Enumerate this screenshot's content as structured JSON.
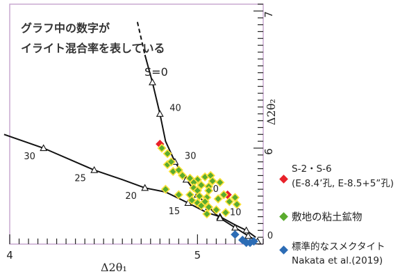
{
  "chart_data": {
    "type": "scatter",
    "note_text": [
      "グラフ中の数字が",
      "イライト混合率を表している"
    ],
    "xlabel": "Δ2θ₁",
    "ylabel": "Δ2θ₂",
    "xlim": [
      4.0,
      5.35
    ],
    "ylim": [
      5.3,
      7.05
    ],
    "x_ticks": [
      {
        "value": 4,
        "label": "4"
      },
      {
        "value": 5,
        "label": "5"
      }
    ],
    "y_ticks": [
      {
        "value": 6,
        "label": "6"
      },
      {
        "value": 7,
        "label": "7"
      }
    ],
    "grid": false,
    "curves": [
      {
        "name": "curve-left",
        "points": [
          [
            3.97,
            6.1
          ],
          [
            4.18,
            6.0
          ],
          [
            4.45,
            5.84
          ],
          [
            4.6,
            5.77
          ],
          [
            4.72,
            5.71
          ],
          [
            4.83,
            5.68
          ],
          [
            4.95,
            5.6
          ],
          [
            5.05,
            5.53
          ],
          [
            5.12,
            5.5
          ],
          [
            5.2,
            5.44
          ],
          [
            5.26,
            5.4
          ],
          [
            5.31,
            5.35
          ]
        ],
        "markers": [
          {
            "x": 4.18,
            "y": 6.0,
            "label": "30"
          },
          {
            "x": 4.45,
            "y": 5.84,
            "label": "25"
          },
          {
            "x": 4.72,
            "y": 5.71,
            "label": "20"
          },
          {
            "x": 4.95,
            "y": 5.6,
            "label": "15"
          },
          {
            "x": 5.12,
            "y": 5.5,
            "label": ""
          },
          {
            "x": 5.26,
            "y": 5.4,
            "label": ""
          }
        ]
      },
      {
        "name": "curve-s0",
        "points": [
          [
            4.72,
            6.68
          ],
          [
            4.76,
            6.48
          ],
          [
            4.8,
            6.25
          ],
          [
            4.83,
            6.05
          ],
          [
            4.88,
            5.9
          ],
          [
            4.94,
            5.77
          ],
          [
            5.0,
            5.66
          ],
          [
            5.06,
            5.57
          ],
          [
            5.12,
            5.49
          ],
          [
            5.2,
            5.42
          ],
          [
            5.27,
            5.36
          ],
          [
            5.32,
            5.32
          ]
        ],
        "dashed_top": [
          [
            4.68,
            6.92
          ],
          [
            4.72,
            6.68
          ]
        ],
        "markers": [
          {
            "x": 4.76,
            "y": 6.48,
            "label": ""
          },
          {
            "x": 4.8,
            "y": 6.25,
            "label": "40"
          },
          {
            "x": 4.88,
            "y": 5.9,
            "label": "30"
          },
          {
            "x": 4.94,
            "y": 5.77,
            "label": ""
          },
          {
            "x": 5.0,
            "y": 5.66,
            "label": "20"
          },
          {
            "x": 5.06,
            "y": 5.57,
            "label": ""
          },
          {
            "x": 5.12,
            "y": 5.49,
            "label": "10"
          },
          {
            "x": 5.2,
            "y": 5.42,
            "label": ""
          },
          {
            "x": 5.27,
            "y": 5.36,
            "label": ""
          },
          {
            "x": 5.32,
            "y": 5.32,
            "label": "0"
          }
        ],
        "annotation": "S=0"
      }
    ],
    "series": [
      {
        "name": "S-2・S-6\n(E-8.4’孔, E-8.5+5”孔)",
        "color": "#e8212a",
        "points": [
          [
            4.8,
            6.03
          ],
          [
            5.16,
            5.66
          ]
        ]
      },
      {
        "name": "敷地の粘土鉱物",
        "color": "#5aab2e",
        "points": [
          [
            4.81,
            6.0
          ],
          [
            4.84,
            5.96
          ],
          [
            4.84,
            5.88
          ],
          [
            4.86,
            5.9
          ],
          [
            4.87,
            5.83
          ],
          [
            4.9,
            5.84
          ],
          [
            4.92,
            5.8
          ],
          [
            4.96,
            5.78
          ],
          [
            5.0,
            5.77
          ],
          [
            5.04,
            5.79
          ],
          [
            5.07,
            5.8
          ],
          [
            5.08,
            5.76
          ],
          [
            5.12,
            5.75
          ],
          [
            4.98,
            5.75
          ],
          [
            5.02,
            5.73
          ],
          [
            5.06,
            5.72
          ],
          [
            4.98,
            5.71
          ],
          [
            5.0,
            5.69
          ],
          [
            5.06,
            5.69
          ],
          [
            4.83,
            5.7
          ],
          [
            4.9,
            5.66
          ],
          [
            4.96,
            5.66
          ],
          [
            5.01,
            5.65
          ],
          [
            5.05,
            5.64
          ],
          [
            4.97,
            5.62
          ],
          [
            5.0,
            5.6
          ],
          [
            5.04,
            5.61
          ],
          [
            5.11,
            5.63
          ],
          [
            5.14,
            5.66
          ],
          [
            5.2,
            5.64
          ],
          [
            5.17,
            5.61
          ],
          [
            5.21,
            5.59
          ],
          [
            5.02,
            5.58
          ],
          [
            5.06,
            5.57
          ],
          [
            5.1,
            5.55
          ],
          [
            5.15,
            5.53
          ],
          [
            5.05,
            5.52
          ]
        ]
      },
      {
        "name": "標準的なスメクタイト\nNakata et al.(2019)",
        "color": "#2c6cb5",
        "points": [
          [
            5.2,
            5.37
          ],
          [
            5.24,
            5.33
          ],
          [
            5.26,
            5.31
          ],
          [
            5.28,
            5.31
          ],
          [
            5.3,
            5.32
          ]
        ]
      }
    ],
    "legend_position": "right"
  }
}
